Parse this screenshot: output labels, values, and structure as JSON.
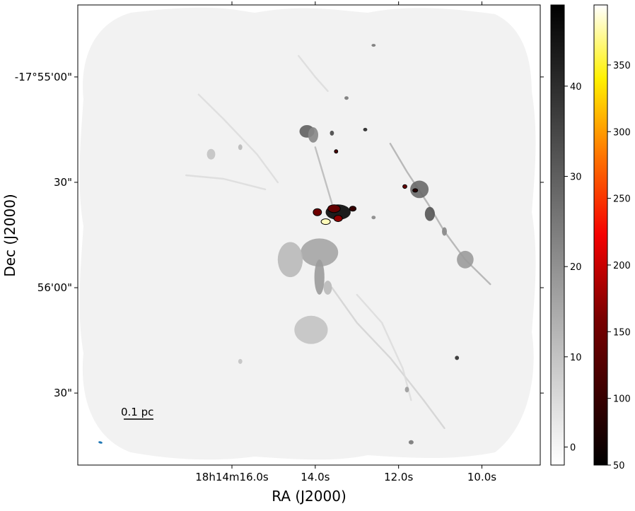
{
  "chart_data": {
    "type": "heatmap",
    "title": "",
    "xlabel": "RA (J2000)",
    "ylabel": "Dec (J2000)",
    "x_ticks": [
      {
        "label": "18h14m16.0s",
        "sec": 16.0
      },
      {
        "label": "14.0s",
        "sec": 14.0
      },
      {
        "label": "12.0s",
        "sec": 12.0
      },
      {
        "label": "10.0s",
        "sec": 10.0
      }
    ],
    "x_range_sec": [
      19.7,
      8.6
    ],
    "y_ticks": [
      {
        "label": "-17°55'00\"",
        "arcsec": 0
      },
      {
        "label": "30\"",
        "arcsec": -30
      },
      {
        "label": "56'00\"",
        "arcsec": -60
      },
      {
        "label": "30\"",
        "arcsec": -90
      }
    ],
    "y_range_arcsec": [
      20.5,
      -110.5
    ],
    "scalebar_label": "0.1 pc",
    "beam_color": "#1f77b4",
    "gray_colorbar": {
      "colormap": "gray_r",
      "range": [
        -2,
        49
      ],
      "ticks": [
        0,
        10,
        20,
        30,
        40
      ]
    },
    "hot_colorbar": {
      "colormap": "afmhot",
      "range": [
        50,
        395
      ],
      "ticks": [
        50,
        100,
        150,
        200,
        250,
        300,
        350
      ]
    },
    "features": [
      {
        "ra": 14.2,
        "dec": -15.5,
        "intensity": 30,
        "ra_sigma": 0.18,
        "dec_sigma": 1.8
      },
      {
        "ra": 14.05,
        "dec": -16.5,
        "intensity": 22,
        "ra_sigma": 0.12,
        "dec_sigma": 2.2
      },
      {
        "ra": 13.6,
        "dec": -16,
        "intensity": 35,
        "ra_sigma": 0.05,
        "dec_sigma": 0.7
      },
      {
        "ra": 12.8,
        "dec": -15,
        "intensity": 42,
        "ra_sigma": 0.05,
        "dec_sigma": 0.5
      },
      {
        "ra": 13.25,
        "dec": -6,
        "intensity": 25,
        "ra_sigma": 0.05,
        "dec_sigma": 0.5
      },
      {
        "ra": 12.6,
        "dec": 9,
        "intensity": 25,
        "ra_sigma": 0.05,
        "dec_sigma": 0.4
      },
      {
        "ra": 13.45,
        "dec": -38.5,
        "intensity": 48,
        "ra_sigma": 0.3,
        "dec_sigma": 2.2
      },
      {
        "ra": 13.9,
        "dec": -50,
        "intensity": 16,
        "ra_sigma": 0.45,
        "dec_sigma": 4
      },
      {
        "ra": 14.6,
        "dec": -52,
        "intensity": 12,
        "ra_sigma": 0.3,
        "dec_sigma": 5
      },
      {
        "ra": 13.9,
        "dec": -57,
        "intensity": 18,
        "ra_sigma": 0.12,
        "dec_sigma": 5
      },
      {
        "ra": 14.1,
        "dec": -72,
        "intensity": 10,
        "ra_sigma": 0.4,
        "dec_sigma": 4
      },
      {
        "ra": 12.6,
        "dec": -40,
        "intensity": 22,
        "ra_sigma": 0.05,
        "dec_sigma": 0.5
      },
      {
        "ra": 11.5,
        "dec": -32,
        "intensity": 28,
        "ra_sigma": 0.22,
        "dec_sigma": 2.5
      },
      {
        "ra": 11.25,
        "dec": -39,
        "intensity": 32,
        "ra_sigma": 0.12,
        "dec_sigma": 2
      },
      {
        "ra": 10.9,
        "dec": -44,
        "intensity": 22,
        "ra_sigma": 0.06,
        "dec_sigma": 1.2
      },
      {
        "ra": 10.4,
        "dec": -52,
        "intensity": 18,
        "ra_sigma": 0.2,
        "dec_sigma": 2.5
      },
      {
        "ra": 10.6,
        "dec": -80,
        "intensity": 40,
        "ra_sigma": 0.05,
        "dec_sigma": 0.6
      },
      {
        "ra": 11.8,
        "dec": -89,
        "intensity": 18,
        "ra_sigma": 0.05,
        "dec_sigma": 0.8
      },
      {
        "ra": 11.7,
        "dec": -104,
        "intensity": 25,
        "ra_sigma": 0.06,
        "dec_sigma": 0.6
      },
      {
        "ra": 15.8,
        "dec": -20,
        "intensity": 12,
        "ra_sigma": 0.05,
        "dec_sigma": 0.8
      },
      {
        "ra": 16.5,
        "dec": -22,
        "intensity": 10,
        "ra_sigma": 0.1,
        "dec_sigma": 1.5
      },
      {
        "ra": 15.8,
        "dec": -81,
        "intensity": 10,
        "ra_sigma": 0.05,
        "dec_sigma": 0.7
      },
      {
        "ra": 13.7,
        "dec": -60,
        "intensity": 12,
        "ra_sigma": 0.1,
        "dec_sigma": 2
      }
    ],
    "filaments": [
      {
        "points": [
          [
            12.2,
            -19
          ],
          [
            11.8,
            -27
          ],
          [
            11.3,
            -36
          ],
          [
            10.9,
            -44
          ],
          [
            10.4,
            -52
          ],
          [
            9.8,
            -59
          ]
        ],
        "intensity": 14
      },
      {
        "points": [
          [
            14.0,
            -20
          ],
          [
            13.8,
            -28
          ],
          [
            13.6,
            -36
          ]
        ],
        "intensity": 12
      },
      {
        "points": [
          [
            13.6,
            -60
          ],
          [
            13.0,
            -70
          ],
          [
            12.2,
            -80
          ],
          [
            11.4,
            -92
          ],
          [
            10.9,
            -100
          ]
        ],
        "intensity": 7
      },
      {
        "points": [
          [
            13.0,
            -62
          ],
          [
            12.4,
            -70
          ],
          [
            11.9,
            -83
          ],
          [
            11.7,
            -92
          ]
        ],
        "intensity": 5
      },
      {
        "points": [
          [
            16.8,
            -5
          ],
          [
            16.2,
            -12
          ],
          [
            15.4,
            -22
          ],
          [
            14.9,
            -30
          ]
        ],
        "intensity": 5
      },
      {
        "points": [
          [
            13.7,
            -4
          ],
          [
            14.0,
            0
          ],
          [
            14.4,
            6
          ]
        ],
        "intensity": 5
      },
      {
        "points": [
          [
            17.1,
            -28
          ],
          [
            16.2,
            -29
          ],
          [
            15.2,
            -32
          ]
        ],
        "intensity": 5
      }
    ],
    "cores": [
      {
        "ra": 13.95,
        "dec": -38.5,
        "peak": 150,
        "ra_sigma": 0.1,
        "dec_sigma": 1.0
      },
      {
        "ra": 13.55,
        "dec": -37.5,
        "peak": 140,
        "ra_sigma": 0.15,
        "dec_sigma": 1.1
      },
      {
        "ra": 13.1,
        "dec": -37.5,
        "peak": 100,
        "ra_sigma": 0.08,
        "dec_sigma": 0.7
      },
      {
        "ra": 13.75,
        "dec": -41.2,
        "peak": 380,
        "ra_sigma": 0.11,
        "dec_sigma": 0.8
      },
      {
        "ra": 13.45,
        "dec": -40.3,
        "peak": 170,
        "ra_sigma": 0.1,
        "dec_sigma": 0.9
      },
      {
        "ra": 13.5,
        "dec": -21.2,
        "peak": 120,
        "ra_sigma": 0.04,
        "dec_sigma": 0.5
      },
      {
        "ra": 11.85,
        "dec": -31.2,
        "peak": 145,
        "ra_sigma": 0.05,
        "dec_sigma": 0.55
      },
      {
        "ra": 11.6,
        "dec": -32.3,
        "peak": 85,
        "ra_sigma": 0.06,
        "dec_sigma": 0.5
      }
    ]
  }
}
